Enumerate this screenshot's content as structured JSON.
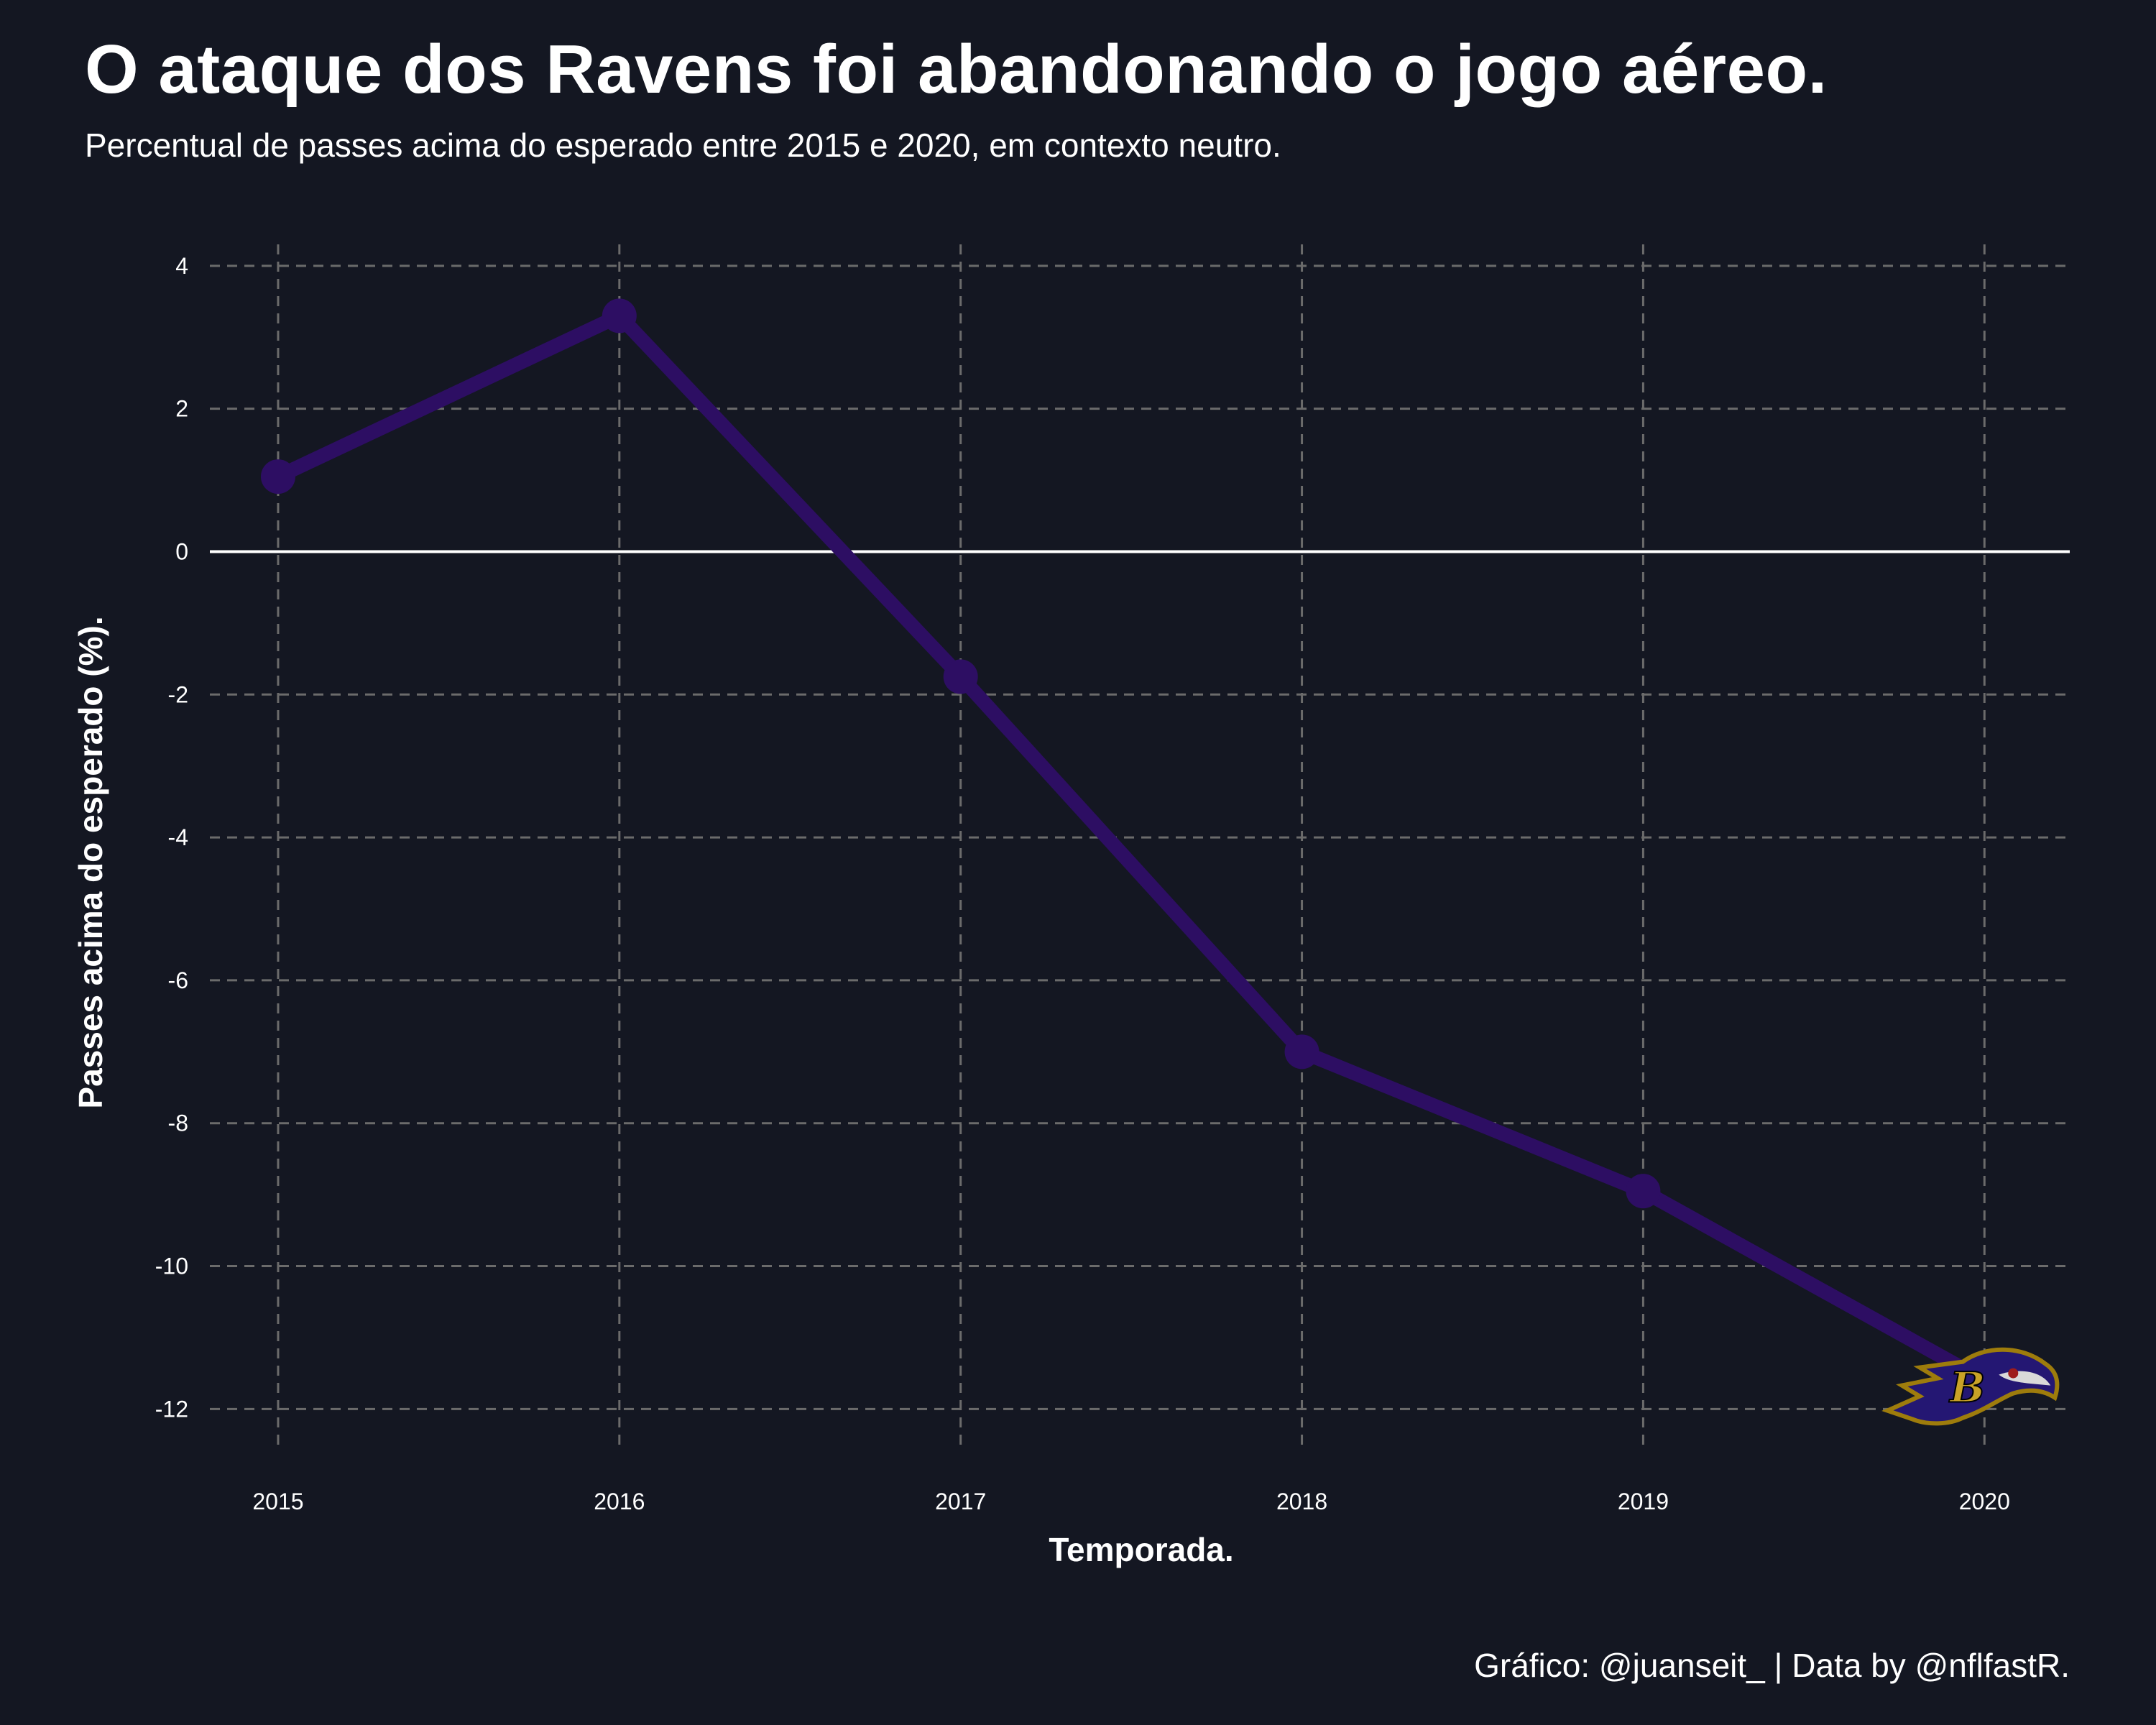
{
  "title": "O ataque dos Ravens foi abandonando o jogo aéreo.",
  "subtitle": "Percentual de passes acima do esperado entre 2015 e 2020, em contexto neutro.",
  "caption": "Gráfico: @juanseit_ | Data by @nflfastR.",
  "colors": {
    "background": "#141722",
    "line": "#2d0e63",
    "grid": "#6b6b6b",
    "zero_line": "#ffffff",
    "text": "#ffffff"
  },
  "chart_data": {
    "type": "line",
    "xlabel": "Temporada.",
    "ylabel": "Passes acima do esperado (%).",
    "x": [
      2015,
      2016,
      2017,
      2018,
      2019,
      2020
    ],
    "series": [
      {
        "values": [
          1.05,
          3.3,
          -1.75,
          -7.0,
          -8.95,
          -11.6
        ]
      }
    ],
    "xlim": [
      2014.8,
      2020.25
    ],
    "ylim": [
      -12.6,
      4.3
    ],
    "x_ticks": [
      2015,
      2016,
      2017,
      2018,
      2019,
      2020
    ],
    "x_tick_labels": [
      "2015",
      "2016",
      "2017",
      "2018",
      "2019",
      "2020"
    ],
    "y_ticks": [
      4,
      2,
      0,
      -2,
      -4,
      -6,
      -8,
      -10,
      -12
    ],
    "y_tick_labels": [
      "4",
      "2",
      "0",
      "-2",
      "-4",
      "-6",
      "-8",
      "-10",
      "-12"
    ],
    "grid": "dashed",
    "reference_line_y": 0,
    "last_point_marker": "ravens-logo-icon"
  }
}
